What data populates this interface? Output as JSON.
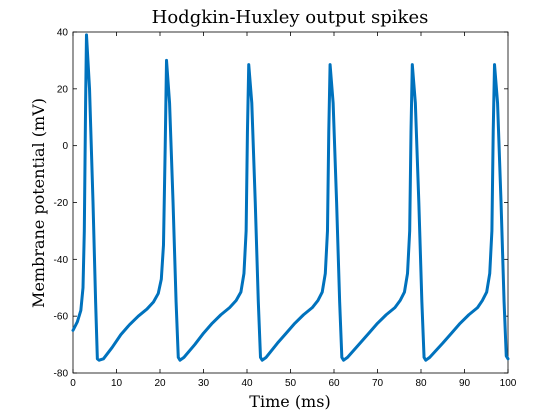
{
  "chart_data": {
    "type": "line",
    "title": "Hodgkin-Huxley output spikes",
    "xlabel": "Time (ms)",
    "ylabel": "Membrane potential (mV)",
    "xlim": [
      0,
      100
    ],
    "ylim": [
      -80,
      40
    ],
    "xticks": [
      0,
      10,
      20,
      30,
      40,
      50,
      60,
      70,
      80,
      90,
      100
    ],
    "yticks": [
      -80,
      -60,
      -40,
      -20,
      0,
      20,
      40
    ],
    "grid": false,
    "legend": "none",
    "line_color": "#0072BD",
    "series": [
      {
        "x": [
          0,
          1,
          1.8,
          2.3,
          2.6,
          2.9,
          3.1,
          3.8,
          4.6,
          5.2,
          5.6,
          6.0,
          7.0,
          9.0,
          11.0,
          13.0,
          15.0,
          17.0,
          18.5,
          19.6,
          20.3,
          20.8,
          21.2,
          21.5,
          22.2,
          23.0,
          23.7,
          24.2,
          24.6,
          25.5,
          28,
          30,
          32,
          34,
          36,
          37.5,
          38.6,
          39.3,
          39.8,
          40.1,
          40.4,
          41.1,
          41.9,
          42.6,
          43.1,
          43.5,
          44.4,
          47,
          49,
          51,
          53,
          55,
          56.3,
          57.3,
          58.0,
          58.5,
          58.8,
          59.1,
          59.8,
          60.6,
          61.3,
          61.8,
          62.2,
          63.1,
          66,
          68,
          70,
          72,
          74,
          75.2,
          76.2,
          76.9,
          77.4,
          77.7,
          78.0,
          78.7,
          79.5,
          80.2,
          80.7,
          81.1,
          82.0,
          85,
          87,
          89,
          91,
          93,
          94.1,
          95.1,
          95.8,
          96.3,
          96.6,
          96.9,
          97.6,
          98.4,
          99.1,
          99.6,
          100
        ],
        "y": [
          -65,
          -62,
          -58,
          -50,
          -30,
          15,
          39,
          20,
          -20,
          -55,
          -75,
          -75.5,
          -75,
          -71,
          -66.5,
          -63,
          -60,
          -57.5,
          -55,
          -52,
          -47,
          -35,
          0,
          30,
          15,
          -20,
          -55,
          -74.5,
          -75.5,
          -74.5,
          -70,
          -66,
          -62.5,
          -59.5,
          -57,
          -54.5,
          -51.5,
          -45,
          -30,
          5,
          28.5,
          15,
          -20,
          -55,
          -74.5,
          -75.5,
          -74.5,
          -69.5,
          -66,
          -62.5,
          -59.5,
          -57,
          -54.5,
          -51.5,
          -45,
          -30,
          5,
          28.5,
          15,
          -20,
          -55,
          -74.5,
          -75.5,
          -74.5,
          -69.5,
          -66,
          -62.5,
          -59.5,
          -57,
          -54.5,
          -51.5,
          -45,
          -30,
          5,
          28.5,
          15,
          -20,
          -55,
          -74.5,
          -75.5,
          -74.5,
          -69.5,
          -66,
          -62.5,
          -59.5,
          -57,
          -54.5,
          -51.5,
          -45,
          -30,
          5,
          28.5,
          15,
          -20,
          -55,
          -74,
          -75
        ]
      }
    ]
  }
}
